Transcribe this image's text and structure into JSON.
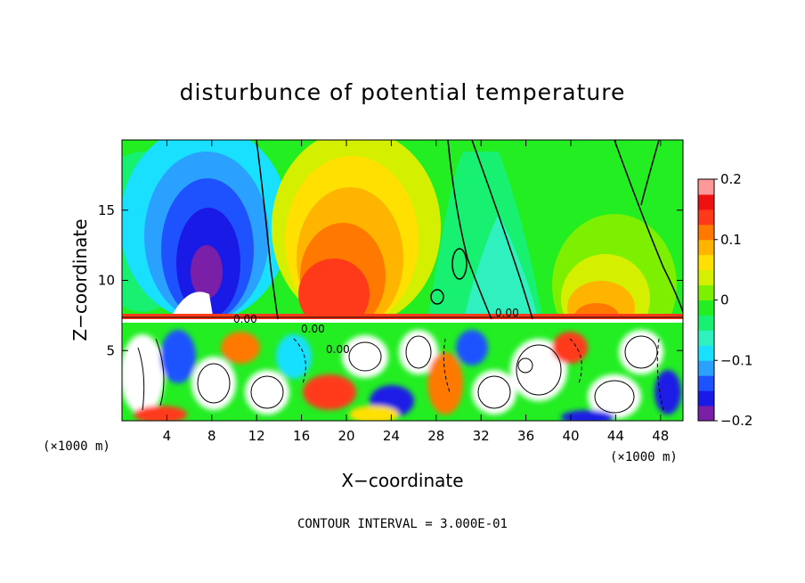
{
  "chart_data": {
    "type": "heatmap",
    "title": "disturbunce of potential temperature",
    "xlabel": "X−coordinate",
    "ylabel": "Z−coordinate",
    "x_unit_label": "(×1000 m)",
    "xlim": [
      0,
      50
    ],
    "ylim": [
      0,
      20
    ],
    "x_ticks": [
      4,
      8,
      12,
      16,
      20,
      24,
      28,
      32,
      36,
      40,
      44,
      48
    ],
    "y_ticks": [
      5,
      10,
      15
    ],
    "colorbar": {
      "min": -0.2,
      "max": 0.2,
      "ticks": [
        "0.2",
        "0.1",
        "0",
        "−0.1",
        "−0.2"
      ],
      "tick_values": [
        0.2,
        0.1,
        0,
        -0.1,
        -0.2
      ],
      "colors": [
        "#7a1fa8",
        "#1a1ae6",
        "#1f52ff",
        "#2aa0ff",
        "#19e0ff",
        "#30f0c0",
        "#17f070",
        "#22ee22",
        "#7cf000",
        "#d4f000",
        "#ffe000",
        "#ffb400",
        "#ff7800",
        "#ff3a1a",
        "#ef1111",
        "#ff9999"
      ]
    },
    "contour_note": "CONTOUR INTERVAL = 3.000E-01",
    "contour_labels": [
      "0.00",
      "0.00",
      "0.00",
      "0.00"
    ],
    "features": [
      {
        "kind": "min",
        "x": 7.5,
        "z": 11,
        "value": -0.2
      },
      {
        "kind": "min",
        "x": 34,
        "z": 11,
        "value": -0.07
      },
      {
        "kind": "max",
        "x": 19.5,
        "z": 13,
        "value": 0.15
      },
      {
        "kind": "max",
        "x": 44,
        "z": 10,
        "value": 0.1
      }
    ],
    "grid": false,
    "legend": "colorbar-right"
  }
}
